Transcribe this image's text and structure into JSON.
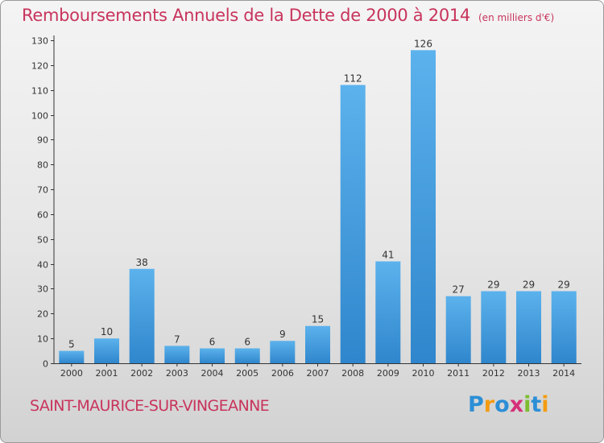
{
  "title": "Remboursements Annuels de la Dette de 2000 à 2014",
  "unit": "(en milliers d'€)",
  "commune": "SAINT-MAURICE-SUR-VINGEANNE",
  "logo": {
    "text": "Proxiti",
    "letters": [
      "P",
      "r",
      "o",
      "x",
      "i",
      "t",
      "i"
    ],
    "colors": [
      "#2c8fd6",
      "#f39c12",
      "#2c8fd6",
      "#d6307a",
      "#7cbd2f",
      "#2c8fd6",
      "#f39c12"
    ]
  },
  "colors": {
    "accent": "#c8345c",
    "bar": "#3a96dc",
    "bar_top": "#5cb2ec",
    "axis": "#333333",
    "grid": "#d8d8d8"
  },
  "chart_data": {
    "type": "bar",
    "categories": [
      "2000",
      "2001",
      "2002",
      "2003",
      "2004",
      "2005",
      "2006",
      "2007",
      "2008",
      "2009",
      "2010",
      "2011",
      "2012",
      "2013",
      "2014"
    ],
    "values": [
      5,
      10,
      38,
      7,
      6,
      6,
      9,
      15,
      112,
      41,
      126,
      27,
      29,
      29,
      29
    ],
    "title": "Remboursements Annuels de la Dette de 2000 à 2014",
    "xlabel": "",
    "ylabel": "",
    "ylim": [
      0,
      130
    ],
    "yticks": [
      0,
      10,
      20,
      30,
      40,
      50,
      60,
      70,
      80,
      90,
      100,
      110,
      120,
      130
    ],
    "grid": false,
    "legend": "none"
  }
}
